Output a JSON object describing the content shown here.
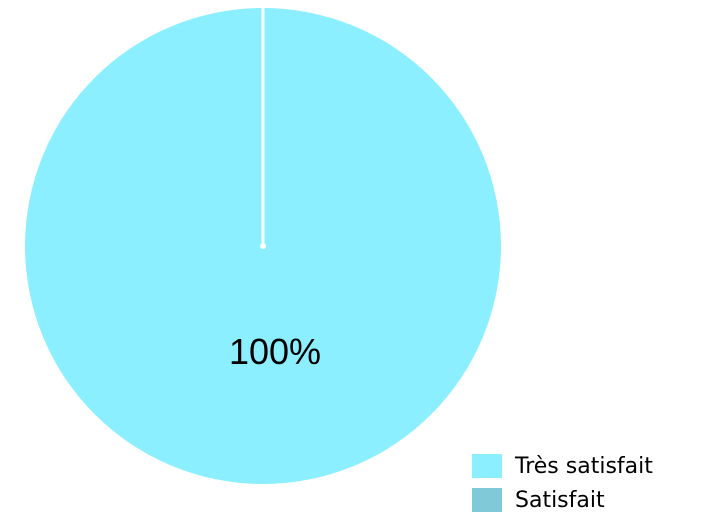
{
  "chart_data": {
    "type": "pie",
    "title": "",
    "categories": [
      "Très satisfait",
      "Satisfait"
    ],
    "values": [
      100,
      0
    ],
    "value_labels": [
      "100%",
      ""
    ],
    "colors": [
      "#8cefff",
      "#80c9d8"
    ],
    "legend_placement": "bottom-right"
  },
  "legend": {
    "items": [
      {
        "label": "Très satisfait",
        "color": "#8cefff"
      },
      {
        "label": "Satisfait",
        "color": "#80c9d8"
      }
    ]
  }
}
